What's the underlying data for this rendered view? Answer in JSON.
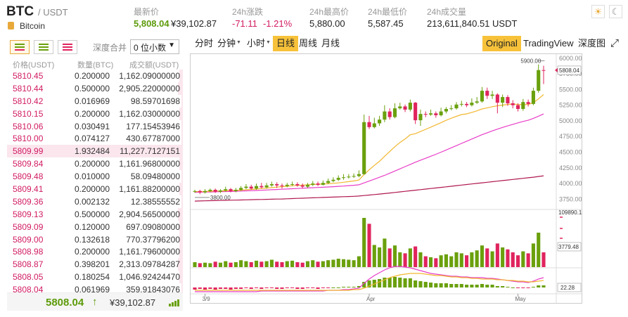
{
  "header": {
    "symbol": "BTC",
    "pair": "/ USDT",
    "coin_name": "Bitcoin",
    "stats": [
      {
        "label": "最新价",
        "value": "5,808.04",
        "value2": "¥39,102.87"
      },
      {
        "label": "24h涨跌",
        "value": "-71.11",
        "value2": "-1.21%"
      },
      {
        "label": "24h最高价",
        "value": "5,880.00"
      },
      {
        "label": "24h最低价",
        "value": "5,587.45"
      },
      {
        "label": "24h成交量",
        "value": "213,611,840.51 USDT"
      }
    ],
    "theme_icons": [
      "sun-icon",
      "moon-icon"
    ]
  },
  "orderbook": {
    "depth_label": "深度合并",
    "depth_select": "0 位小数",
    "col_price": "价格(USDT)",
    "col_amount": "数量(BTC)",
    "col_total": "成交额(USDT)",
    "rows": [
      {
        "price": "5810.45",
        "amount": "0.200000",
        "total": "1,162.09000000",
        "depth": 0.02
      },
      {
        "price": "5810.44",
        "amount": "0.500000",
        "total": "2,905.22000000",
        "depth": 0.03
      },
      {
        "price": "5810.42",
        "amount": "0.016969",
        "total": "98.59701698",
        "depth": 0.01
      },
      {
        "price": "5810.15",
        "amount": "0.200000",
        "total": "1,162.03000000",
        "depth": 0.02
      },
      {
        "price": "5810.06",
        "amount": "0.030491",
        "total": "177.15453946",
        "depth": 0.01
      },
      {
        "price": "5810.00",
        "amount": "0.074127",
        "total": "430.67787000",
        "depth": 0.01
      },
      {
        "price": "5809.99",
        "amount": "1.932484",
        "total": "11,227.7127151",
        "depth": 1.0
      },
      {
        "price": "5809.84",
        "amount": "0.200000",
        "total": "1,161.96800000",
        "depth": 0.02
      },
      {
        "price": "5809.48",
        "amount": "0.010000",
        "total": "58.09480000",
        "depth": 0.01
      },
      {
        "price": "5809.41",
        "amount": "0.200000",
        "total": "1,161.88200000",
        "depth": 0.02
      },
      {
        "price": "5809.36",
        "amount": "0.002132",
        "total": "12.38555552",
        "depth": 0.01
      },
      {
        "price": "5809.13",
        "amount": "0.500000",
        "total": "2,904.56500000",
        "depth": 0.03
      },
      {
        "price": "5809.09",
        "amount": "0.120000",
        "total": "697.09080000",
        "depth": 0.02
      },
      {
        "price": "5809.00",
        "amount": "0.132618",
        "total": "770.37796200",
        "depth": 0.02
      },
      {
        "price": "5808.98",
        "amount": "0.200000",
        "total": "1,161.79600000",
        "depth": 0.02
      },
      {
        "price": "5808.87",
        "amount": "0.398201",
        "total": "2,313.09784287",
        "depth": 0.03
      },
      {
        "price": "5808.05",
        "amount": "0.180254",
        "total": "1,046.92424470",
        "depth": 0.02
      },
      {
        "price": "5808.04",
        "amount": "0.061969",
        "total": "359.91843076",
        "depth": 0.01
      }
    ],
    "last_price": "5808.04",
    "last_arrow": "↑",
    "last_cny": "¥39,102.87"
  },
  "chart_toolbar": {
    "left": [
      "分时",
      "分钟",
      "小时",
      "日线",
      "周线",
      "月线"
    ],
    "active": "日线",
    "right": [
      "Original",
      "TradingView",
      "深度图"
    ],
    "right_active": "Original"
  },
  "chart_data": {
    "type": "candlestick",
    "y_ticks": [
      "6000.00",
      "5750.00",
      "5500.00",
      "5250.00",
      "5000.00",
      "4750.00",
      "4500.00",
      "4250.00",
      "4000.00",
      "3750.00"
    ],
    "x_labels": [
      "3/9",
      "Apr",
      "May"
    ],
    "price_ylim": [
      3620,
      6020
    ],
    "high_marker": "5900.00",
    "low_marker": "3800.00",
    "current_marker": "5808.04",
    "volume_max_label": "109890.1",
    "volume_current_label": "3779.48",
    "indicator_current_label": "22.28",
    "candles": [
      [
        3870,
        3880,
        3900,
        3850
      ],
      [
        3880,
        3860,
        3900,
        3830
      ],
      [
        3860,
        3880,
        3910,
        3840
      ],
      [
        3880,
        3900,
        3920,
        3860
      ],
      [
        3900,
        3870,
        3920,
        3850
      ],
      [
        3870,
        3890,
        3910,
        3850
      ],
      [
        3890,
        3910,
        3950,
        3870
      ],
      [
        3910,
        3880,
        3930,
        3860
      ],
      [
        3880,
        3900,
        3930,
        3860
      ],
      [
        3900,
        3930,
        3960,
        3880
      ],
      [
        3930,
        3950,
        3990,
        3910
      ],
      [
        3950,
        3920,
        3980,
        3900
      ],
      [
        3920,
        3960,
        4000,
        3900
      ],
      [
        3960,
        3940,
        4010,
        3920
      ],
      [
        3940,
        3970,
        4010,
        3920
      ],
      [
        3970,
        3990,
        4030,
        3950
      ],
      [
        3990,
        3970,
        4020,
        3930
      ],
      [
        3970,
        3960,
        4000,
        3920
      ],
      [
        3960,
        3980,
        4010,
        3940
      ],
      [
        3980,
        3990,
        4030,
        3960
      ],
      [
        3990,
        3970,
        4020,
        3950
      ],
      [
        3970,
        3950,
        4000,
        3920
      ],
      [
        3950,
        3980,
        4010,
        3930
      ],
      [
        3980,
        4000,
        4040,
        3960
      ],
      [
        4000,
        3980,
        4030,
        3960
      ],
      [
        3980,
        4010,
        4050,
        3970
      ],
      [
        4010,
        4040,
        4080,
        3990
      ],
      [
        4040,
        4060,
        4100,
        4020
      ],
      [
        4060,
        4090,
        4130,
        4040
      ],
      [
        4090,
        4100,
        4150,
        4060
      ],
      [
        4100,
        4110,
        4150,
        4080
      ],
      [
        4110,
        4120,
        4160,
        4090
      ],
      [
        4120,
        4150,
        4210,
        4100
      ],
      [
        4150,
        4980,
        5100,
        4140
      ],
      [
        4980,
        4900,
        5080,
        4870
      ],
      [
        4900,
        4960,
        5050,
        4880
      ],
      [
        4960,
        5020,
        5080,
        4920
      ],
      [
        5020,
        5150,
        5250,
        4980
      ],
      [
        5150,
        5060,
        5200,
        5020
      ],
      [
        5060,
        5200,
        5280,
        5040
      ],
      [
        5200,
        5230,
        5290,
        5180
      ],
      [
        5230,
        5180,
        5260,
        5140
      ],
      [
        5180,
        5290,
        5340,
        5150
      ],
      [
        5290,
        5010,
        5300,
        4950
      ],
      [
        5010,
        5110,
        5180,
        4920
      ],
      [
        5110,
        5100,
        5150,
        5060
      ],
      [
        5100,
        5120,
        5180,
        5080
      ],
      [
        5120,
        5090,
        5150,
        5050
      ],
      [
        5090,
        5150,
        5210,
        5070
      ],
      [
        5150,
        5190,
        5220,
        5120
      ],
      [
        5190,
        5200,
        5250,
        5170
      ],
      [
        5200,
        5260,
        5300,
        5180
      ],
      [
        5260,
        5270,
        5320,
        5230
      ],
      [
        5270,
        5250,
        5300,
        5220
      ],
      [
        5250,
        5290,
        5360,
        5230
      ],
      [
        5290,
        5310,
        5380,
        5270
      ],
      [
        5310,
        5480,
        5540,
        5290
      ],
      [
        5480,
        5400,
        5530,
        5350
      ],
      [
        5400,
        5420,
        5480,
        5350
      ],
      [
        5420,
        5290,
        5440,
        5120
      ],
      [
        5290,
        5380,
        5420,
        5220
      ],
      [
        5380,
        5280,
        5410,
        5240
      ],
      [
        5280,
        5250,
        5330,
        5200
      ],
      [
        5250,
        5190,
        5280,
        5150
      ],
      [
        5190,
        5300,
        5350,
        5160
      ],
      [
        5300,
        5270,
        5340,
        5230
      ],
      [
        5270,
        5480,
        5530,
        5250
      ],
      [
        5480,
        5810,
        5900,
        5450
      ],
      [
        5810,
        5808,
        5880,
        5587
      ]
    ],
    "ma_fast": [
      3870,
      3872,
      3874,
      3877,
      3879,
      3881,
      3884,
      3887,
      3890,
      3895,
      3900,
      3906,
      3912,
      3920,
      3927,
      3935,
      3943,
      3950,
      3957,
      3964,
      3970,
      3976,
      3980,
      3985,
      3988,
      3992,
      3997,
      4003,
      4010,
      4020,
      4031,
      4042,
      4056,
      4144,
      4220,
      4290,
      4355,
      4435,
      4510,
      4588,
      4655,
      4712,
      4778,
      4795,
      4830,
      4865,
      4900,
      4935,
      4970,
      5010,
      5042,
      5072,
      5100,
      5112,
      5135,
      5160,
      5190,
      5208,
      5226,
      5240,
      5252,
      5262,
      5270,
      5262,
      5258,
      5262,
      5290,
      5350,
      5420
    ],
    "ma_mid": [
      3860,
      3862,
      3864,
      3866,
      3868,
      3870,
      3872,
      3874,
      3877,
      3880,
      3883,
      3886,
      3889,
      3893,
      3897,
      3901,
      3905,
      3909,
      3913,
      3917,
      3921,
      3925,
      3929,
      3933,
      3937,
      3941,
      3945,
      3950,
      3955,
      3960,
      3966,
      3972,
      3980,
      4010,
      4040,
      4070,
      4100,
      4130,
      4165,
      4200,
      4235,
      4270,
      4305,
      4340,
      4372,
      4403,
      4435,
      4467,
      4500,
      4535,
      4570,
      4605,
      4640,
      4675,
      4710,
      4745,
      4780,
      4810,
      4840,
      4868,
      4895,
      4920,
      4945,
      4968,
      4990,
      5010,
      5040,
      5075,
      5110
    ],
    "ma_slow": [
      3720,
      3722,
      3724,
      3726,
      3728,
      3730,
      3732,
      3734,
      3736,
      3738,
      3740,
      3742,
      3744,
      3746,
      3748,
      3750,
      3752,
      3754,
      3757,
      3760,
      3763,
      3766,
      3769,
      3772,
      3775,
      3778,
      3781,
      3784,
      3787,
      3790,
      3793,
      3796,
      3800,
      3808,
      3816,
      3824,
      3832,
      3840,
      3849,
      3858,
      3867,
      3876,
      3885,
      3894,
      3903,
      3912,
      3921,
      3930,
      3939,
      3948,
      3957,
      3966,
      3975,
      3984,
      3993,
      4002,
      4011,
      4020,
      4029,
      4038,
      4047,
      4056,
      4065,
      4074,
      4083,
      4092,
      4101,
      4112,
      4124
    ],
    "volume": [
      10,
      8,
      9,
      8,
      11,
      9,
      12,
      9,
      10,
      14,
      12,
      10,
      13,
      11,
      12,
      15,
      11,
      10,
      12,
      13,
      10,
      9,
      12,
      14,
      11,
      12,
      14,
      15,
      17,
      16,
      15,
      14,
      22,
      100,
      88,
      45,
      40,
      58,
      38,
      44,
      30,
      28,
      38,
      42,
      30,
      22,
      20,
      18,
      24,
      26,
      22,
      30,
      28,
      24,
      30,
      34,
      44,
      38,
      32,
      48,
      40,
      36,
      30,
      24,
      32,
      28,
      48,
      70,
      30
    ],
    "indicator": {
      "bars": [
        -3,
        -2,
        -3,
        -2,
        -3,
        -2,
        -2,
        -3,
        -2,
        -2,
        -1,
        -2,
        -1,
        -2,
        -1,
        -1,
        -2,
        -2,
        -1,
        -1,
        -2,
        -2,
        -1,
        -1,
        -2,
        -1,
        -1,
        0,
        0,
        1,
        1,
        1,
        2,
        8,
        10,
        11,
        12,
        14,
        14,
        15,
        14,
        13,
        13,
        10,
        9,
        8,
        7,
        6,
        6,
        6,
        5,
        5,
        5,
        4,
        4,
        4,
        5,
        4,
        4,
        2,
        2,
        1,
        0,
        -1,
        -1,
        -1,
        1,
        3,
        3
      ],
      "line1": [
        -6,
        -6,
        -6,
        -6,
        -6,
        -6,
        -6,
        -6,
        -6,
        -6,
        -6,
        -6,
        -6,
        -5,
        -5,
        -5,
        -5,
        -5,
        -5,
        -5,
        -5,
        -5,
        -5,
        -5,
        -5,
        -5,
        -4,
        -4,
        -4,
        -3,
        -3,
        -2,
        -1,
        6,
        12,
        17,
        21,
        25,
        28,
        30,
        30,
        29,
        28,
        26,
        24,
        22,
        20,
        19,
        18,
        17,
        16,
        16,
        15,
        15,
        14,
        14,
        14,
        13,
        13,
        12,
        11,
        10,
        9,
        8,
        8,
        7,
        9,
        12,
        14
      ],
      "line2": [
        -4,
        -4,
        -4,
        -4,
        -4,
        -4,
        -4,
        -4,
        -4,
        -4,
        -4,
        -4,
        -4,
        -4,
        -4,
        -4,
        -4,
        -4,
        -4,
        -4,
        -4,
        -4,
        -4,
        -4,
        -4,
        -4,
        -4,
        -4,
        -4,
        -4,
        -4,
        -3,
        -3,
        -1,
        2,
        5,
        8,
        11,
        14,
        16,
        18,
        19,
        20,
        20,
        20,
        19,
        18,
        17,
        17,
        16,
        15,
        15,
        14,
        14,
        13,
        13,
        12,
        12,
        12,
        11,
        11,
        10,
        10,
        9,
        9,
        8,
        8,
        9,
        10
      ]
    }
  },
  "colors": {
    "up": "#6aa00d",
    "down": "#e0245e",
    "ma_fast": "#f2b731",
    "ma_mid": "#e83ec8",
    "ma_slow": "#b0184f",
    "accent": "#f7c23a"
  }
}
